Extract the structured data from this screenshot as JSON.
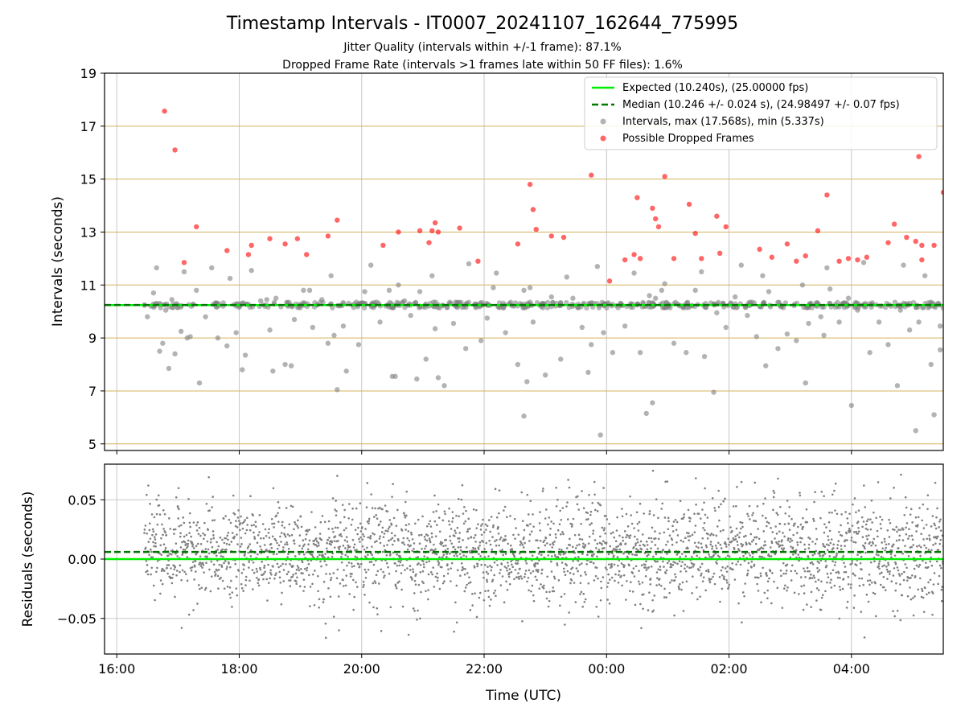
{
  "title": "Timestamp Intervals - IT0007_20241107_162644_775995",
  "subtitle_1": "Jitter Quality (intervals within +/-1 frame): 87.1%",
  "subtitle_2": "Dropped Frame Rate (intervals >1 frames late within 50 FF files): 1.6%",
  "colors": {
    "expected": "#00ee00",
    "median": "#007700",
    "intervals": "#808080",
    "dropped": "#ff0000",
    "hgrid_top": "#d4b25c",
    "grid": "#c8c8c8"
  },
  "chart_data": [
    {
      "type": "scatter",
      "panel": "intervals",
      "ylabel": "Intervals (seconds)",
      "xlabel": "",
      "xlim": [
        15.8,
        29.5
      ],
      "ylim": [
        4.75,
        19.0
      ],
      "x_unit": "hours since 00:00 UTC on the start day",
      "x_ticks": [
        16,
        18,
        20,
        22,
        24,
        26,
        28
      ],
      "y_ticks": [
        5,
        7,
        9,
        11,
        13,
        15,
        17,
        19
      ],
      "y_tick_labels": [
        "5",
        "7",
        "9",
        "11",
        "13",
        "15",
        "17",
        "19"
      ],
      "grid": true,
      "legend_position": "top-right",
      "legend": [
        "Expected (10.240s), (25.00000 fps)",
        "Median (10.246 +/- 0.024 s), (24.98497 +/- 0.07 fps)",
        "Intervals, max (17.568s), min (5.337s)",
        "Possible Dropped Frames"
      ],
      "expected_interval": 10.24,
      "median_interval": 10.246,
      "series": [
        {
          "name": "Intervals, max (17.568s), min (5.337s)",
          "x": [
            16.5,
            16.6,
            16.75,
            16.8,
            16.9,
            16.95,
            17.05,
            17.1,
            17.2,
            17.3,
            17.45,
            17.55,
            17.8,
            17.85,
            17.95,
            18.1,
            18.2,
            18.35,
            18.5,
            18.6,
            18.75,
            18.9,
            19.05,
            19.2,
            19.35,
            19.45,
            19.55,
            19.6,
            19.7,
            19.95,
            20.05,
            20.3,
            20.45,
            20.55,
            20.7,
            20.8,
            20.95,
            21.05,
            21.2,
            21.35,
            21.5,
            21.7,
            21.95,
            22.05,
            22.15,
            22.35,
            22.55,
            22.75,
            22.8,
            22.95,
            23.1,
            23.25,
            23.45,
            23.6,
            23.75,
            23.95,
            24.1,
            24.3,
            24.55,
            24.7,
            24.8,
            24.9,
            25.1,
            25.3,
            25.45,
            25.6,
            25.8,
            25.95,
            26.1,
            26.3,
            26.45,
            26.65,
            26.8,
            26.95,
            27.1,
            27.3,
            27.5,
            27.65,
            27.8,
            27.95,
            28.1,
            28.3,
            28.45,
            28.6,
            28.8,
            28.95,
            29.1,
            29.3,
            29.45,
            16.65,
            17.15,
            17.65,
            18.45,
            19.15,
            19.5,
            20.15,
            20.6,
            21.15,
            21.75,
            22.2,
            22.65,
            23.35,
            23.85,
            24.45,
            24.95,
            25.55,
            26.2,
            26.55,
            27.2,
            27.6,
            28.2,
            28.85,
            29.2,
            16.85,
            17.35,
            18.05,
            18.85,
            19.75,
            20.5,
            21.25,
            22.7,
            23.7,
            24.65,
            25.75,
            26.6,
            27.25,
            28.0,
            28.75,
            29.35,
            16.7,
            18.55,
            20.9,
            24.75,
            27.55,
            29.05,
            23.9,
            22.65,
            23.0,
            29.45
          ],
          "y": [
            9.8,
            10.7,
            8.8,
            10.05,
            10.45,
            8.4,
            9.25,
            11.5,
            9.05,
            10.8,
            9.8,
            11.65,
            8.7,
            11.25,
            9.2,
            8.35,
            11.55,
            10.4,
            9.3,
            10.5,
            8.0,
            9.7,
            10.8,
            9.4,
            10.45,
            8.8,
            9.1,
            7.05,
            9.45,
            8.75,
            10.75,
            9.6,
            10.8,
            7.55,
            10.4,
            9.85,
            10.75,
            8.2,
            9.35,
            7.2,
            9.55,
            8.6,
            8.9,
            9.75,
            10.9,
            9.2,
            8.0,
            10.9,
            9.6,
            10.3,
            10.55,
            8.2,
            10.5,
            9.4,
            8.75,
            9.2,
            8.45,
            9.45,
            8.45,
            10.6,
            10.5,
            10.8,
            8.8,
            8.45,
            10.8,
            8.3,
            9.95,
            9.4,
            10.55,
            9.85,
            9.05,
            10.75,
            8.6,
            9.15,
            8.9,
            9.55,
            9.8,
            10.85,
            9.6,
            10.5,
            10.05,
            8.45,
            9.6,
            8.75,
            10.05,
            9.3,
            9.6,
            8.0,
            9.45,
            11.65,
            9.0,
            9.0,
            10.45,
            10.8,
            11.35,
            11.75,
            11.0,
            11.35,
            11.8,
            11.45,
            10.8,
            11.3,
            11.7,
            11.45,
            11.05,
            11.5,
            11.75,
            11.35,
            11.0,
            11.65,
            11.85,
            11.75,
            11.35,
            7.85,
            7.3,
            7.8,
            7.95,
            7.75,
            7.55,
            7.5,
            7.35,
            7.7,
            6.15,
            6.95,
            7.95,
            7.3,
            6.45,
            7.2,
            6.1,
            8.5,
            7.75,
            7.45,
            6.55,
            9.1,
            5.5,
            5.337,
            6.05,
            7.6,
            8.55
          ]
        },
        {
          "name": "Possible Dropped Frames",
          "x": [
            16.78,
            16.95,
            17.1,
            17.3,
            17.8,
            18.15,
            18.2,
            18.5,
            18.75,
            18.95,
            19.1,
            19.45,
            19.6,
            20.35,
            20.6,
            20.95,
            21.1,
            21.15,
            21.2,
            21.25,
            21.6,
            21.9,
            22.55,
            22.75,
            22.8,
            22.85,
            23.1,
            23.3,
            23.75,
            24.05,
            24.3,
            24.45,
            24.5,
            24.55,
            24.75,
            24.8,
            24.95,
            25.35,
            25.45,
            25.55,
            25.8,
            25.85,
            25.95,
            26.5,
            26.7,
            26.95,
            27.1,
            27.25,
            27.45,
            27.6,
            27.8,
            27.95,
            28.1,
            28.25,
            28.6,
            28.7,
            28.9,
            29.05,
            29.1,
            29.15,
            29.35,
            29.5,
            24.85,
            25.1,
            29.15
          ],
          "y": [
            17.568,
            16.1,
            11.85,
            13.2,
            12.3,
            12.15,
            12.5,
            12.75,
            12.55,
            12.75,
            12.15,
            12.85,
            13.45,
            12.5,
            13.0,
            13.05,
            12.6,
            13.05,
            13.35,
            13.0,
            13.15,
            11.9,
            12.55,
            14.8,
            13.85,
            13.1,
            12.85,
            12.8,
            15.15,
            11.15,
            11.95,
            12.15,
            14.3,
            12.0,
            13.9,
            13.5,
            15.1,
            14.05,
            12.95,
            12.0,
            13.6,
            12.2,
            13.2,
            12.35,
            12.05,
            12.55,
            11.9,
            12.1,
            13.05,
            14.4,
            11.9,
            12.0,
            11.95,
            12.05,
            12.6,
            13.3,
            12.8,
            12.65,
            15.85,
            11.95,
            12.5,
            14.5,
            13.2,
            12.0,
            12.5
          ]
        }
      ]
    },
    {
      "type": "scatter",
      "panel": "residuals",
      "ylabel": "Residuals (seconds)",
      "xlabel": "Time (UTC)",
      "xlim": [
        15.8,
        29.5
      ],
      "ylim": [
        -0.08,
        0.08
      ],
      "x_unit": "hours since 00:00 UTC on the start day",
      "x_ticks": [
        16,
        18,
        20,
        22,
        24,
        26,
        28
      ],
      "x_tick_labels": [
        "16:00",
        "18:00",
        "20:00",
        "22:00",
        "00:00",
        "02:00",
        "04:00"
      ],
      "y_ticks": [
        -0.05,
        0.0,
        0.05
      ],
      "y_tick_labels": [
        "−0.05",
        "0.00",
        "0.05"
      ],
      "grid": true,
      "expected_residual": 0.0,
      "median_residual": 0.006,
      "series_start_x": 16.45,
      "series_end_x": 29.5,
      "series_point_count": 2800,
      "series_spread_sd": 0.022
    }
  ]
}
